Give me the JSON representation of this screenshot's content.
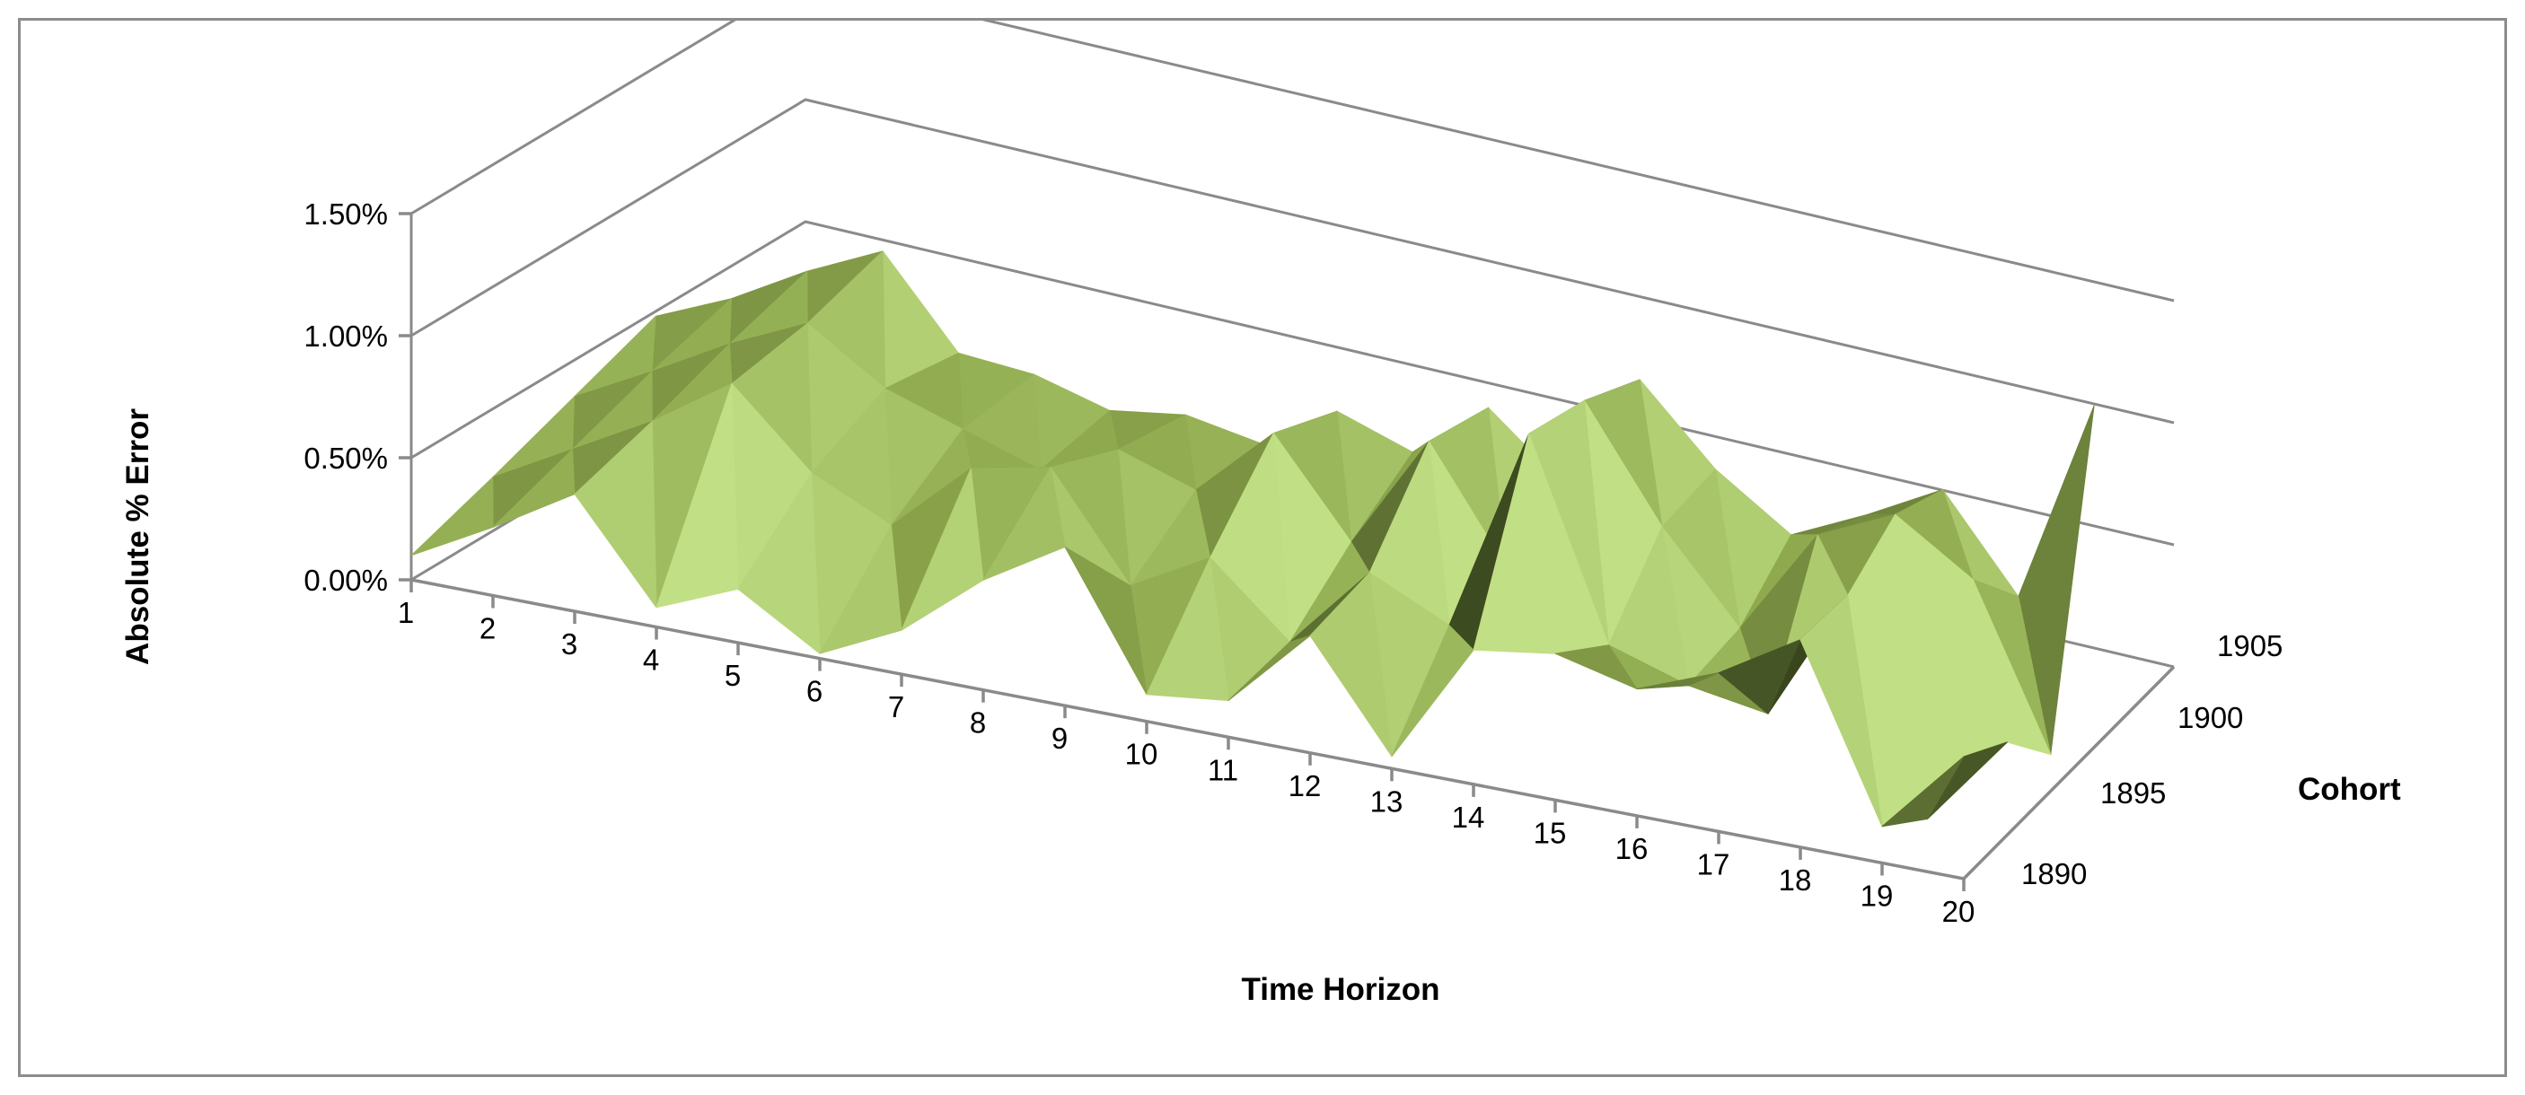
{
  "chart_data": {
    "type": "surface",
    "title": "",
    "xlabel": "Time Horizon",
    "ylabel": "Absolute % Error",
    "zlabel": "Cohort",
    "x": [
      1,
      2,
      3,
      4,
      5,
      6,
      7,
      8,
      9,
      10,
      11,
      12,
      13,
      14,
      15,
      16,
      17,
      18,
      19,
      20
    ],
    "x_tick_labels": [
      "1",
      "2",
      "3",
      "4",
      "5",
      "6",
      "7",
      "8",
      "9",
      "10",
      "11",
      "12",
      "13",
      "14",
      "15",
      "16",
      "17",
      "18",
      "19",
      "20"
    ],
    "cohorts": [
      "1890",
      "1895",
      "1900",
      "1905"
    ],
    "y_tick_labels": [
      "0.00%",
      "0.50%",
      "1.00%",
      "1.50%"
    ],
    "ylim": [
      0,
      0.015
    ],
    "grid": true,
    "legend": "none",
    "series": [
      {
        "name": "1890",
        "values": [
          0.001,
          0.0028,
          0.0048,
          0.0008,
          0.0022,
          0.0002,
          0.0018,
          0.0045,
          0.0065,
          0.0011,
          0.0015,
          0.0048,
          0.0005,
          0.0055,
          0.006,
          0.0052,
          0.0065,
          0.0085,
          0.0015,
          0.005
        ]
      },
      {
        "name": "1895",
        "values": [
          0.0022,
          0.004,
          0.0058,
          0.008,
          0.005,
          0.0035,
          0.0065,
          0.0072,
          0.003,
          0.0048,
          0.002,
          0.0055,
          0.004,
          0.0125,
          0.0045,
          0.0035,
          0.003,
          0.0085,
          0.0,
          0.0038
        ]
      },
      {
        "name": "1900",
        "values": [
          0.0035,
          0.0052,
          0.007,
          0.0085,
          0.0065,
          0.0055,
          0.0045,
          0.006,
          0.005,
          0.008,
          0.0042,
          0.009,
          0.0045,
          0.012,
          0.0075,
          0.004,
          0.0085,
          0.01,
          0.008,
          0.0015
        ]
      },
      {
        "name": "1905",
        "values": [
          0.0048,
          0.0062,
          0.008,
          0.0095,
          0.006,
          0.0058,
          0.005,
          0.0055,
          0.005,
          0.007,
          0.006,
          0.0085,
          0.006,
          0.011,
          0.008,
          0.006,
          0.0075,
          0.0092,
          0.0055,
          0.014
        ]
      }
    ]
  },
  "colors": {
    "surface_base": "#8faa4e",
    "surface_light": "#c6e58a",
    "surface_dark": "#2f3a18",
    "grid": "#8a8a8a",
    "frame": "#8c8c8c"
  }
}
